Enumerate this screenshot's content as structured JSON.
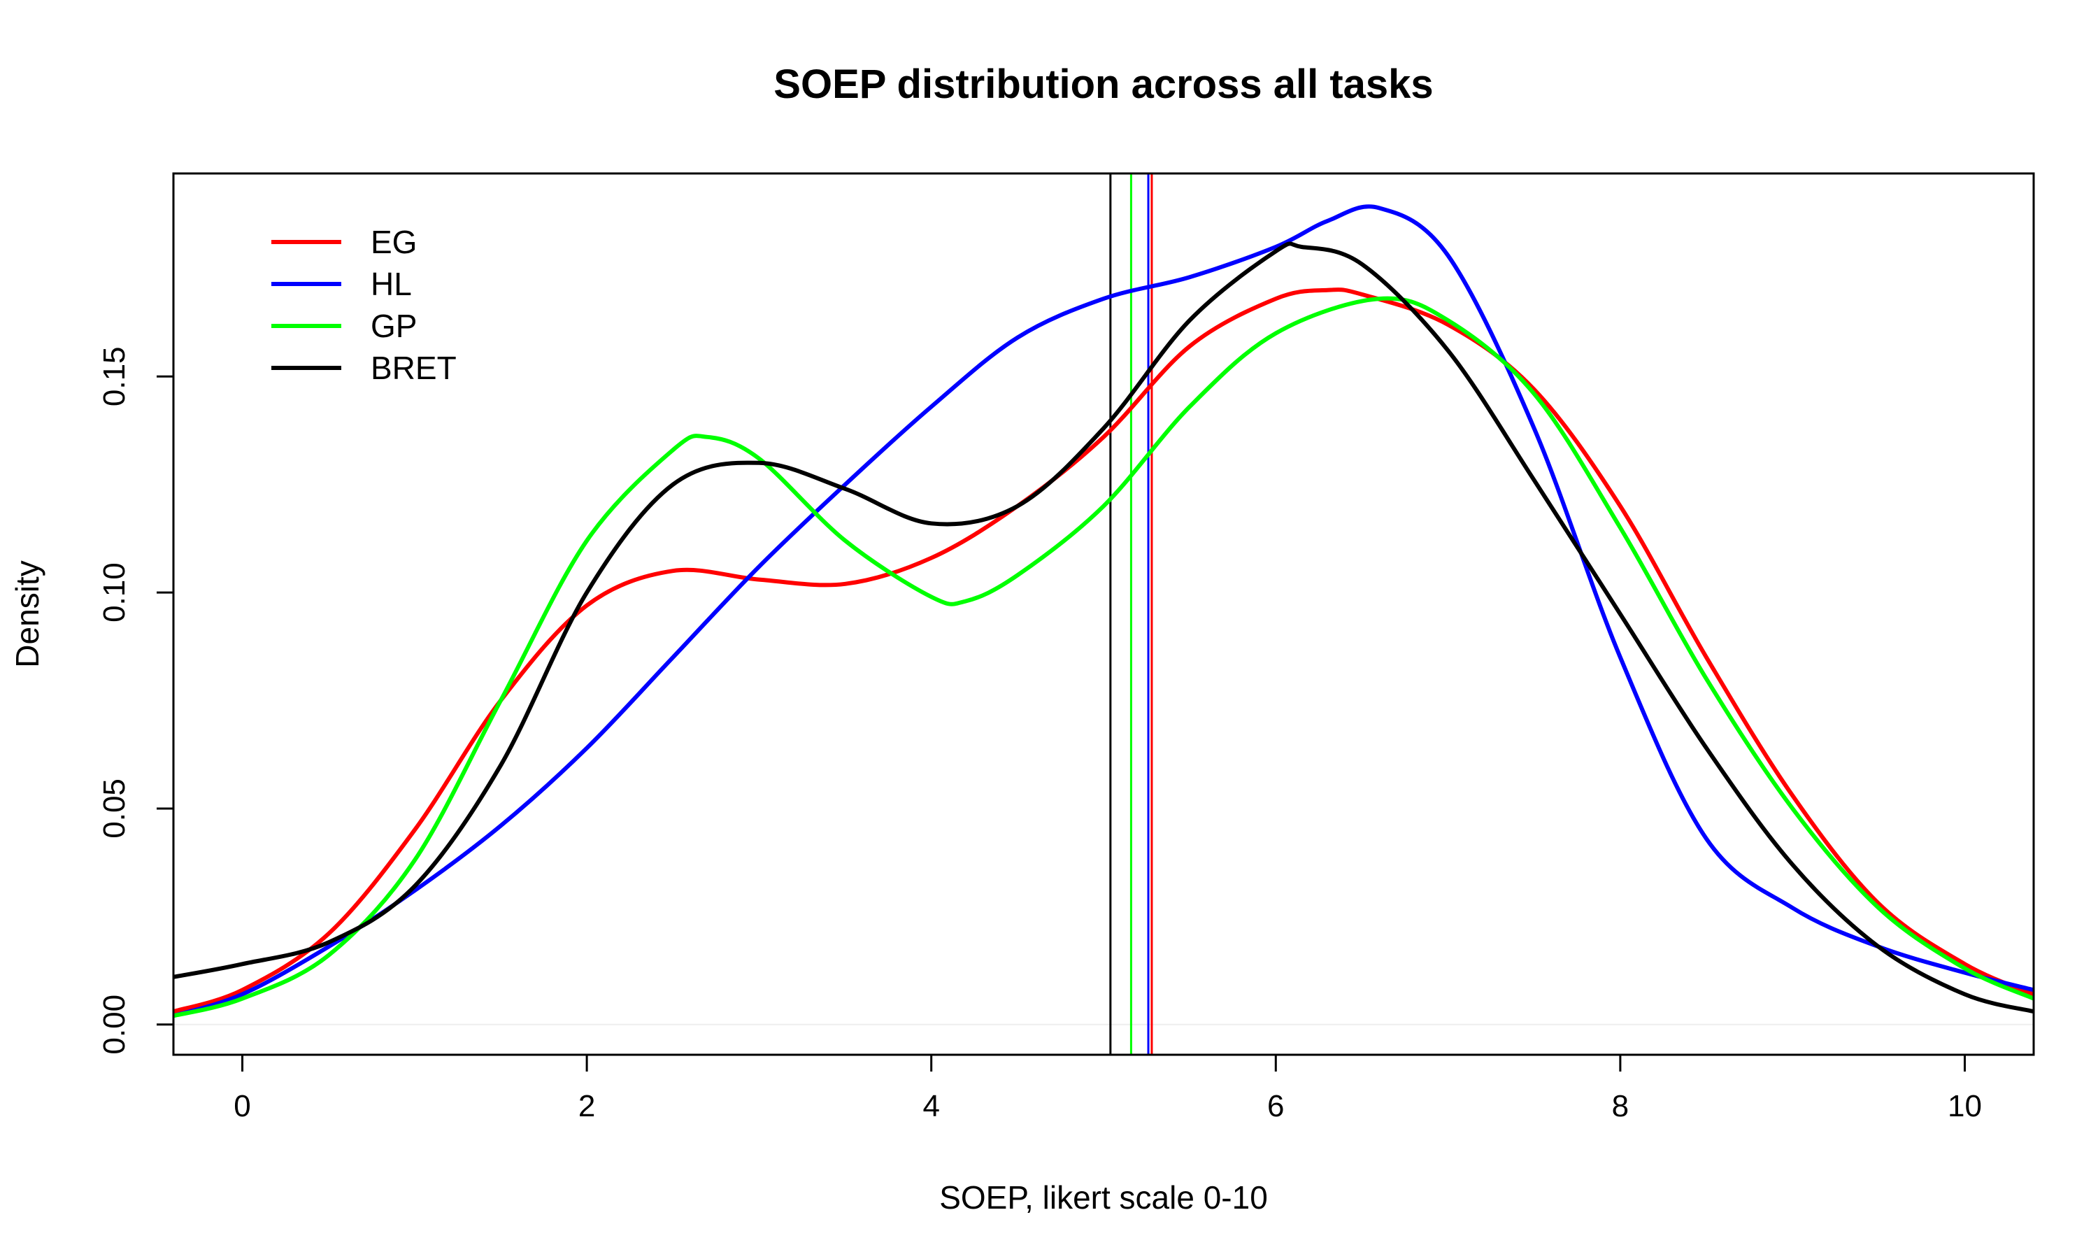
{
  "chart_data": {
    "type": "line",
    "title": "SOEP distribution across all tasks",
    "xlabel": "SOEP, likert scale 0-10",
    "ylabel": "Density",
    "xlim": [
      -0.4,
      10.4
    ],
    "ylim": [
      -0.007,
      0.197
    ],
    "x_ticks": [
      0,
      2,
      4,
      6,
      8,
      10
    ],
    "x_tick_labels": [
      "0",
      "2",
      "4",
      "6",
      "8",
      "10"
    ],
    "y_ticks": [
      0.0,
      0.05,
      0.1,
      0.15
    ],
    "y_tick_labels": [
      "0.00",
      "0.05",
      "0.10",
      "0.15"
    ],
    "legend_position": "top-left",
    "grid": false,
    "series": [
      {
        "name": "EG",
        "color": "#ff0000",
        "mean": 5.28,
        "x": [
          -0.4,
          0,
          0.5,
          1,
          1.5,
          2,
          2.5,
          3,
          3.5,
          4,
          4.5,
          5,
          5.5,
          6,
          6.3,
          6.5,
          7,
          7.5,
          8,
          8.5,
          9,
          9.5,
          10,
          10.4
        ],
        "y": [
          0.003,
          0.008,
          0.021,
          0.045,
          0.075,
          0.097,
          0.105,
          0.103,
          0.102,
          0.108,
          0.12,
          0.136,
          0.157,
          0.168,
          0.17,
          0.169,
          0.162,
          0.147,
          0.12,
          0.085,
          0.053,
          0.028,
          0.014,
          0.007
        ]
      },
      {
        "name": "HL",
        "color": "#0000ff",
        "mean": 5.26,
        "x": [
          -0.4,
          0,
          0.5,
          1,
          1.5,
          2,
          2.5,
          3,
          3.5,
          4,
          4.5,
          5,
          5.5,
          6,
          6.3,
          6.6,
          7,
          7.5,
          8,
          8.5,
          9,
          9.5,
          10,
          10.4
        ],
        "y": [
          0.002,
          0.007,
          0.018,
          0.031,
          0.046,
          0.064,
          0.085,
          0.106,
          0.125,
          0.143,
          0.159,
          0.168,
          0.173,
          0.18,
          0.186,
          0.189,
          0.178,
          0.138,
          0.085,
          0.043,
          0.027,
          0.018,
          0.012,
          0.008
        ]
      },
      {
        "name": "GP",
        "color": "#00ff00",
        "mean": 5.16,
        "x": [
          -0.4,
          0,
          0.5,
          1,
          1.5,
          2,
          2.5,
          2.7,
          3,
          3.5,
          4,
          4.2,
          4.5,
          5,
          5.5,
          6,
          6.6,
          7,
          7.5,
          8,
          8.5,
          9,
          9.5,
          10,
          10.4
        ],
        "y": [
          0.002,
          0.006,
          0.016,
          0.038,
          0.075,
          0.112,
          0.133,
          0.136,
          0.131,
          0.112,
          0.099,
          0.098,
          0.104,
          0.12,
          0.143,
          0.16,
          0.168,
          0.163,
          0.146,
          0.115,
          0.08,
          0.05,
          0.027,
          0.013,
          0.006
        ]
      },
      {
        "name": "BRET",
        "color": "#000000",
        "mean": 5.04,
        "x": [
          -0.4,
          0,
          0.5,
          1,
          1.5,
          2,
          2.5,
          3,
          3.5,
          4,
          4.5,
          5,
          5.5,
          6,
          6.15,
          6.5,
          7,
          7.5,
          8,
          8.5,
          9,
          9.5,
          10,
          10.4
        ],
        "y": [
          0.011,
          0.014,
          0.019,
          0.032,
          0.06,
          0.1,
          0.125,
          0.13,
          0.124,
          0.116,
          0.12,
          0.138,
          0.163,
          0.179,
          0.18,
          0.176,
          0.156,
          0.126,
          0.095,
          0.064,
          0.037,
          0.018,
          0.007,
          0.003
        ]
      }
    ]
  }
}
